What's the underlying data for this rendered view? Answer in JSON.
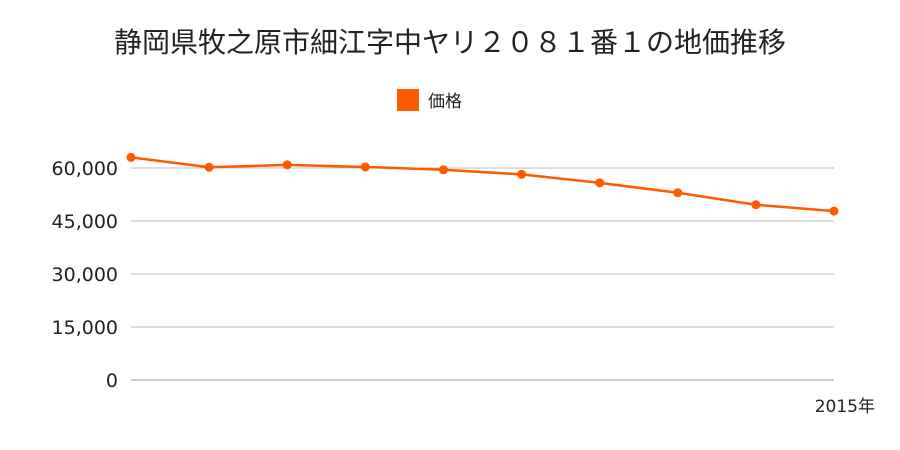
{
  "chart_data": {
    "type": "line",
    "title": "静岡県牧之原市細江字中ヤリ２０８１番１の地価推移",
    "series": [
      {
        "name": "価格",
        "color": "#ff5a00",
        "values": [
          63000,
          60200,
          60900,
          60300,
          59500,
          58200,
          55800,
          53000,
          49600,
          47800
        ]
      }
    ],
    "x": [
      "",
      "",
      "",
      "",
      "",
      "",
      "",
      "",
      "",
      "2015年"
    ],
    "y_ticks": [
      0,
      15000,
      30000,
      45000,
      60000
    ],
    "y_tick_labels": [
      "0",
      "15,000",
      "30,000",
      "45,000",
      "60,000"
    ],
    "ylim": [
      0,
      60000
    ],
    "grid": true,
    "legend_position": "top-center"
  }
}
